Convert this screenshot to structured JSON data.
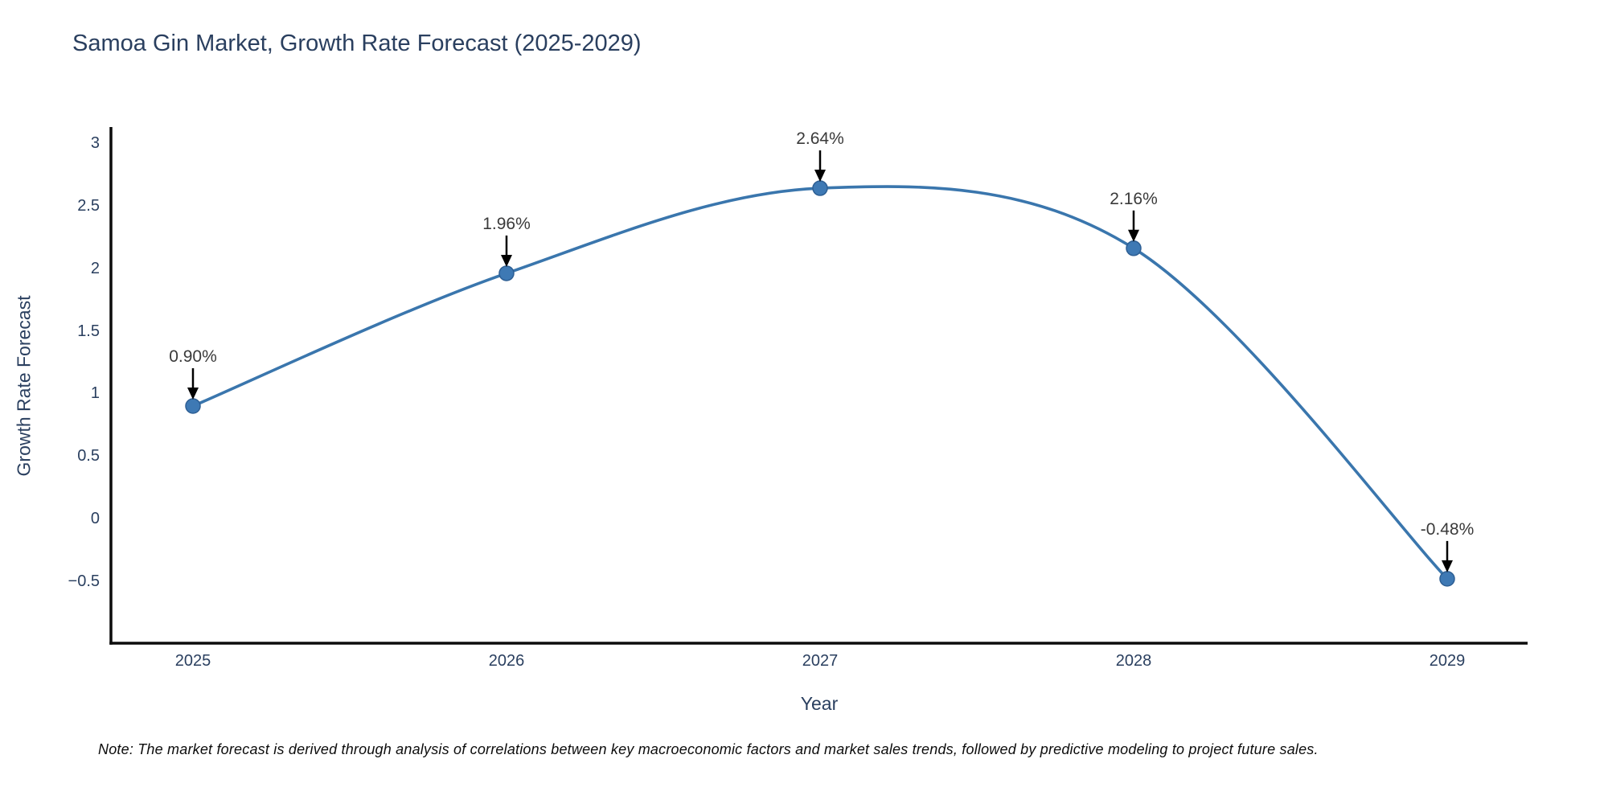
{
  "title": "Samoa Gin Market, Growth Rate Forecast (2025-2029)",
  "note": "Note: The market forecast is derived through analysis of correlations between key macroeconomic factors and market sales trends, followed by predictive modeling to project future sales.",
  "chart_data": {
    "type": "line",
    "title": "Samoa Gin Market, Growth Rate Forecast (2025-2029)",
    "xlabel": "Year",
    "ylabel": "Growth Rate Forecast",
    "x": [
      2025,
      2026,
      2027,
      2028,
      2029
    ],
    "values": [
      0.9,
      1.96,
      2.64,
      2.16,
      -0.48
    ],
    "point_labels": [
      "0.90%",
      "1.96%",
      "2.64%",
      "2.16%",
      "-0.48%"
    ],
    "xtick_labels": [
      "2025",
      "2026",
      "2027",
      "2028",
      "2029"
    ],
    "ytick_values": [
      3,
      2.5,
      2,
      1.5,
      1,
      0.5,
      0,
      -0.5
    ],
    "ytick_labels": [
      "3",
      "2.5",
      "2",
      "1.5",
      "1",
      "0.5",
      "0",
      "−0.5"
    ],
    "ylim": [
      -1.0,
      3.12
    ],
    "line_shape": "spline",
    "grid": false,
    "legend": null,
    "colors": {
      "line": "#3a76ad",
      "marker_fill": "#3e79b4",
      "marker_edge": "#2e5f94",
      "axis": "#0c0c0c",
      "tick_text": "#2a3f5f",
      "annotation_text": "#3a3a3a",
      "annotation_arrow": "#000000",
      "background": "#ffffff"
    }
  }
}
